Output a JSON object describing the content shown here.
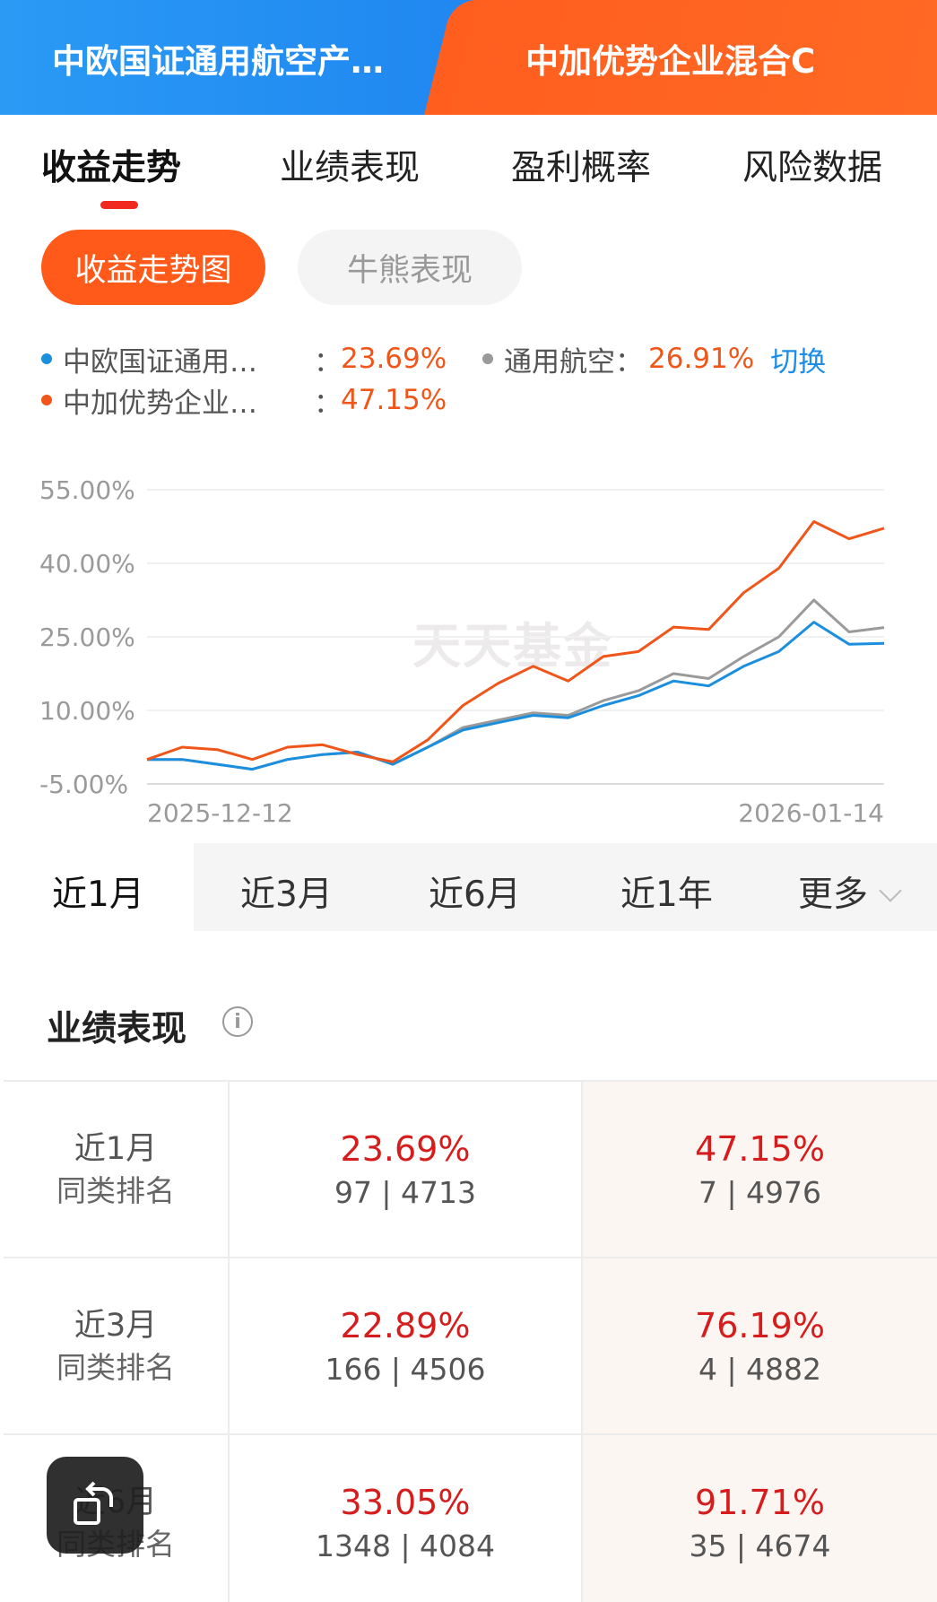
{
  "header": {
    "fund_a_name": "中欧国证通用航空产…",
    "fund_b_name": "中加优势企业混合C"
  },
  "tabs": [
    {
      "label": "收益走势",
      "active": true
    },
    {
      "label": "业绩表现",
      "active": false
    },
    {
      "label": "盈利概率",
      "active": false
    },
    {
      "label": "风险数据",
      "active": false
    }
  ],
  "sub_tabs": [
    {
      "label": "收益走势图",
      "active": true
    },
    {
      "label": "牛熊表现",
      "active": false
    }
  ],
  "legend": {
    "fund_a": {
      "name": "中欧国证通用…",
      "colon": "：",
      "value": "23.69%",
      "color": "#1b8fde"
    },
    "fund_b": {
      "name": "中加优势企业…",
      "colon": "：",
      "value": "47.15%",
      "color": "#f0561a"
    },
    "benchmark": {
      "name": "通用航空：",
      "value": "26.91%",
      "color": "#9a9a9a"
    },
    "switch_label": "切换"
  },
  "chart_data": {
    "type": "line",
    "x_start_label": "2025-12-12",
    "x_end_label": "2026-01-14",
    "y_ticks": [
      "55.00%",
      "40.00%",
      "25.00%",
      "10.00%",
      "-5.00%"
    ],
    "y_tick_values": [
      55,
      40,
      25,
      10,
      -5
    ],
    "ylim": [
      -5,
      55
    ],
    "watermark": "天天基金",
    "series": [
      {
        "name": "中欧国证通用…",
        "color": "#1b8fde",
        "values": [
          0,
          0,
          -1,
          -2,
          0,
          1,
          1.5,
          -1,
          2.5,
          6,
          7.5,
          9,
          8.5,
          11,
          13,
          16,
          15,
          19,
          22,
          28,
          23.5,
          23.69
        ]
      },
      {
        "name": "通用航空",
        "color": "#9a9a9a",
        "values": [
          0,
          0,
          -1,
          -2,
          0,
          1,
          1.5,
          -1,
          2.5,
          6.5,
          8,
          9.5,
          9,
          12,
          14,
          17.5,
          16.5,
          21,
          25,
          32.5,
          26,
          26.91
        ]
      },
      {
        "name": "中加优势企业…",
        "color": "#f0561a",
        "values": [
          0,
          2.5,
          2,
          0,
          2.5,
          3,
          1,
          -0.5,
          4,
          11,
          15.5,
          19,
          16,
          21,
          22,
          27,
          26.5,
          34,
          39,
          48.5,
          45,
          47.15
        ]
      }
    ]
  },
  "periods": [
    {
      "label": "近1月",
      "active": true
    },
    {
      "label": "近3月",
      "active": false
    },
    {
      "label": "近6月",
      "active": false
    },
    {
      "label": "近1年",
      "active": false
    },
    {
      "label": "更多",
      "active": false
    }
  ],
  "performance": {
    "title": "业绩表现",
    "info_icon": "info-icon",
    "rows": [
      {
        "period": "近1月",
        "rank_label": "同类排名",
        "a_pct": "23.69%",
        "a_rank": "97 | 4713",
        "b_pct": "47.15%",
        "b_rank": "7 | 4976"
      },
      {
        "period": "近3月",
        "rank_label": "同类排名",
        "a_pct": "22.89%",
        "a_rank": "166 | 4506",
        "b_pct": "76.19%",
        "b_rank": "4 | 4882"
      },
      {
        "period": "近6月",
        "rank_label": "同类排名",
        "a_pct": "33.05%",
        "a_rank": "1348 | 4084",
        "b_pct": "91.71%",
        "b_rank": "35 | 4674"
      }
    ]
  },
  "float_button": {
    "icon": "rotate-screen-icon"
  }
}
